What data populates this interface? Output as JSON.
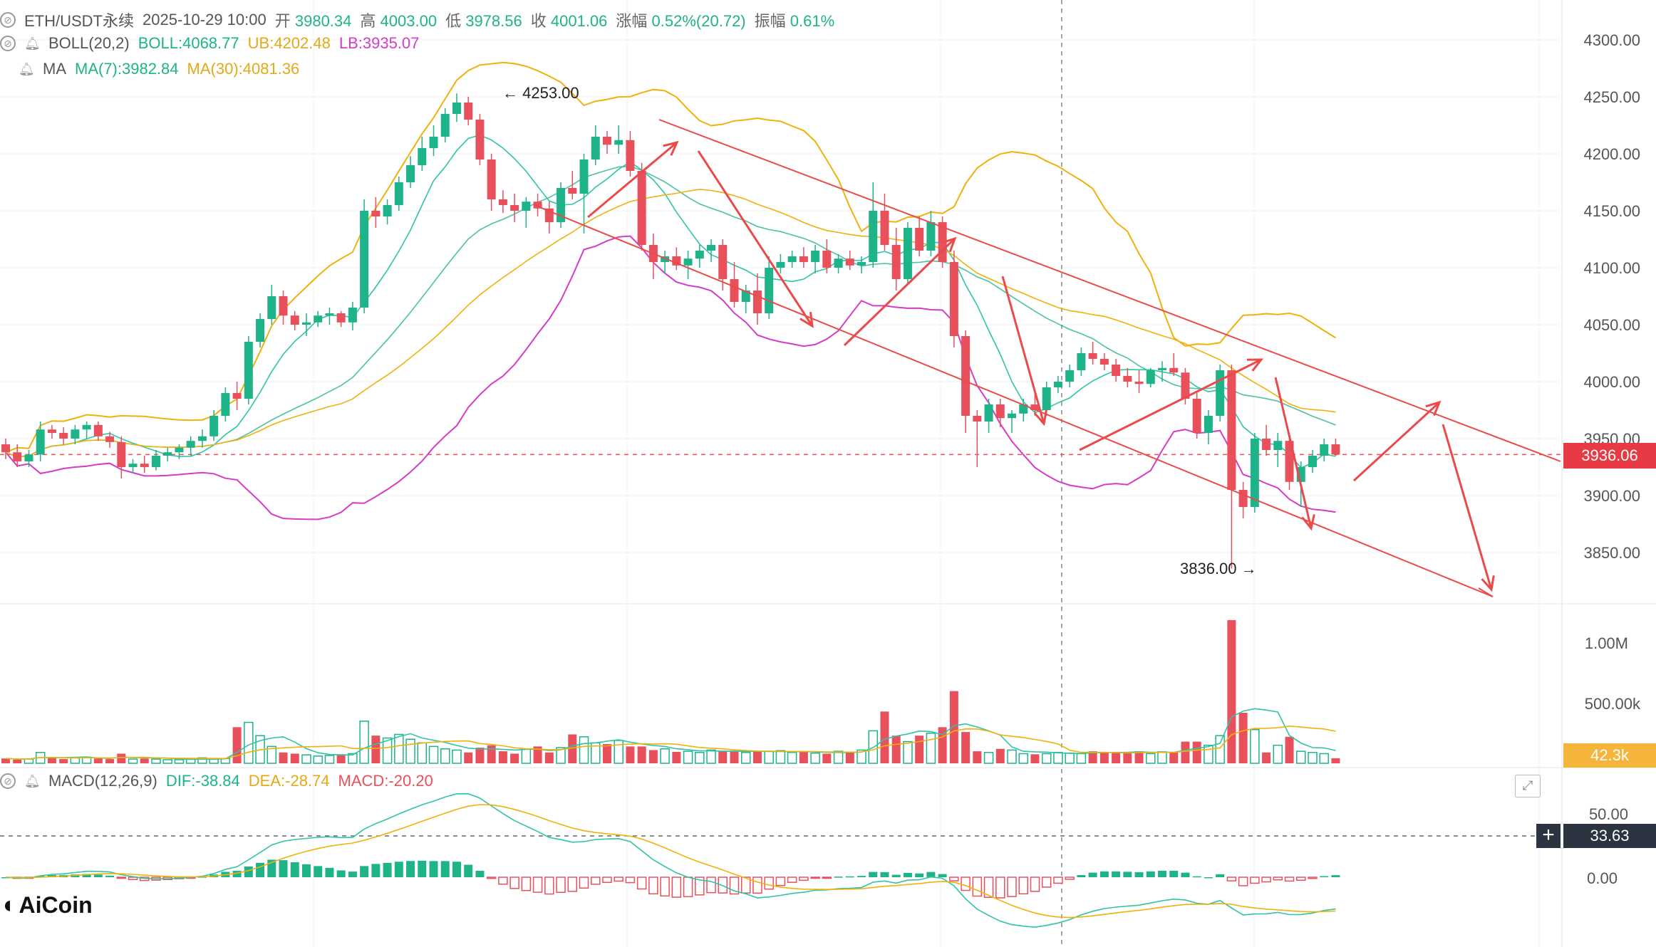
{
  "header": {
    "symbol": "ETH/USDT永续",
    "time": "2025-10-29 10:00",
    "open_label": "开",
    "open": "3980.34",
    "high_label": "高",
    "high": "4003.00",
    "low_label": "低",
    "low": "3978.56",
    "close_label": "收",
    "close": "4001.06",
    "change_label": "涨幅",
    "change": "0.52%(20.72)",
    "amplitude_label": "振幅",
    "amplitude": "0.61%"
  },
  "boll": {
    "name": "BOLL(20,2)",
    "mid": "BOLL:4068.77",
    "ub": "UB:4202.48",
    "lb": "LB:3935.07"
  },
  "ma": {
    "name": "MA",
    "ma7": "MA(7):3982.84",
    "ma30": "MA(30):4081.36"
  },
  "macd": {
    "name": "MACD(12,26,9)",
    "dif": "DIF:-38.84",
    "dea": "DEA:-28.74",
    "macd": "MACD:-20.20"
  },
  "price_axis": [
    "4300.00",
    "4250.00",
    "4200.00",
    "4150.00",
    "4100.00",
    "4050.00",
    "4000.00",
    "3950.00",
    "3900.00",
    "3850.00"
  ],
  "volume_axis": [
    "1.00M",
    "500.00k"
  ],
  "macd_axis": [
    "50.00",
    "0.00"
  ],
  "current_price_tag": "3936.06",
  "volume_tag": "42.3k",
  "macd_tag": "33.63",
  "high_marker": "4253.00",
  "low_marker": "3836.00",
  "logo_text": "AiCoin",
  "colors": {
    "up": "#1fb38a",
    "down": "#e8505b",
    "boll_mid": "#1fb38a",
    "boll_band": "#f0b10c",
    "lb": "#d43cc8",
    "ma7": "#2ec4a8",
    "ma30": "#f0b10c",
    "arrow": "#ea4a4a"
  },
  "chart_data": {
    "type": "candlestick",
    "ylim": [
      3800,
      4320
    ],
    "candles": [
      [
        3945,
        3950,
        3932,
        3938
      ],
      [
        3938,
        3945,
        3925,
        3930
      ],
      [
        3930,
        3940,
        3925,
        3936
      ],
      [
        3936,
        3965,
        3930,
        3958
      ],
      [
        3958,
        3962,
        3950,
        3955
      ],
      [
        3955,
        3960,
        3945,
        3950
      ],
      [
        3950,
        3962,
        3945,
        3958
      ],
      [
        3958,
        3965,
        3950,
        3962
      ],
      [
        3962,
        3965,
        3948,
        3952
      ],
      [
        3952,
        3956,
        3942,
        3947
      ],
      [
        3947,
        3952,
        3915,
        3925
      ],
      [
        3925,
        3932,
        3920,
        3928
      ],
      [
        3928,
        3935,
        3920,
        3925
      ],
      [
        3925,
        3940,
        3922,
        3935
      ],
      [
        3935,
        3942,
        3930,
        3938
      ],
      [
        3938,
        3945,
        3932,
        3942
      ],
      [
        3942,
        3952,
        3935,
        3948
      ],
      [
        3948,
        3958,
        3942,
        3952
      ],
      [
        3952,
        3975,
        3948,
        3970
      ],
      [
        3970,
        3995,
        3965,
        3990
      ],
      [
        3990,
        4000,
        3975,
        3985
      ],
      [
        3985,
        4040,
        3980,
        4035
      ],
      [
        4035,
        4060,
        4030,
        4055
      ],
      [
        4055,
        4085,
        4050,
        4075
      ],
      [
        4075,
        4080,
        4050,
        4058
      ],
      [
        4058,
        4062,
        4045,
        4050
      ],
      [
        4050,
        4060,
        4040,
        4052
      ],
      [
        4052,
        4062,
        4048,
        4058
      ],
      [
        4058,
        4065,
        4050,
        4060
      ],
      [
        4060,
        4062,
        4048,
        4052
      ],
      [
        4052,
        4070,
        4045,
        4065
      ],
      [
        4065,
        4160,
        4060,
        4150
      ],
      [
        4150,
        4162,
        4135,
        4145
      ],
      [
        4145,
        4160,
        4138,
        4155
      ],
      [
        4155,
        4180,
        4150,
        4175
      ],
      [
        4175,
        4198,
        4170,
        4190
      ],
      [
        4190,
        4215,
        4185,
        4205
      ],
      [
        4205,
        4225,
        4198,
        4215
      ],
      [
        4215,
        4240,
        4210,
        4235
      ],
      [
        4235,
        4253,
        4228,
        4245
      ],
      [
        4245,
        4250,
        4225,
        4230
      ],
      [
        4230,
        4235,
        4190,
        4195
      ],
      [
        4195,
        4200,
        4150,
        4160
      ],
      [
        4160,
        4168,
        4148,
        4155
      ],
      [
        4155,
        4165,
        4140,
        4150
      ],
      [
        4150,
        4162,
        4135,
        4158
      ],
      [
        4158,
        4165,
        4145,
        4152
      ],
      [
        4152,
        4158,
        4130,
        4140
      ],
      [
        4140,
        4175,
        4135,
        4170
      ],
      [
        4170,
        4185,
        4160,
        4165
      ],
      [
        4165,
        4200,
        4130,
        4195
      ],
      [
        4195,
        4225,
        4190,
        4215
      ],
      [
        4215,
        4220,
        4200,
        4208
      ],
      [
        4208,
        4225,
        4200,
        4212
      ],
      [
        4212,
        4220,
        4180,
        4185
      ],
      [
        4185,
        4192,
        4115,
        4120
      ],
      [
        4120,
        4130,
        4090,
        4105
      ],
      [
        4105,
        4115,
        4095,
        4110
      ],
      [
        4110,
        4118,
        4098,
        4102
      ],
      [
        4102,
        4115,
        4090,
        4108
      ],
      [
        4108,
        4120,
        4100,
        4115
      ],
      [
        4115,
        4125,
        4105,
        4120
      ],
      [
        4120,
        4125,
        4080,
        4090
      ],
      [
        4090,
        4105,
        4065,
        4070
      ],
      [
        4070,
        4085,
        4060,
        4080
      ],
      [
        4080,
        4095,
        4050,
        4060
      ],
      [
        4060,
        4110,
        4055,
        4100
      ],
      [
        4100,
        4112,
        4095,
        4105
      ],
      [
        4105,
        4115,
        4100,
        4110
      ],
      [
        4110,
        4118,
        4100,
        4105
      ],
      [
        4105,
        4120,
        4095,
        4115
      ],
      [
        4115,
        4125,
        4095,
        4100
      ],
      [
        4100,
        4112,
        4095,
        4108
      ],
      [
        4108,
        4115,
        4098,
        4102
      ],
      [
        4102,
        4110,
        4095,
        4105
      ],
      [
        4105,
        4175,
        4100,
        4150
      ],
      [
        4150,
        4165,
        4115,
        4120
      ],
      [
        4120,
        4135,
        4080,
        4090
      ],
      [
        4090,
        4140,
        4085,
        4135
      ],
      [
        4135,
        4145,
        4110,
        4115
      ],
      [
        4115,
        4150,
        4110,
        4140
      ],
      [
        4140,
        4145,
        4100,
        4105
      ],
      [
        4105,
        4115,
        4030,
        4040
      ],
      [
        4040,
        4045,
        3955,
        3970
      ],
      [
        3970,
        3975,
        3925,
        3965
      ],
      [
        3965,
        3985,
        3955,
        3980
      ],
      [
        3980,
        3985,
        3960,
        3968
      ],
      [
        3968,
        3975,
        3955,
        3972
      ],
      [
        3972,
        3985,
        3965,
        3980
      ],
      [
        3980,
        3990,
        3970,
        3975
      ],
      [
        3975,
        4000,
        3970,
        3995
      ],
      [
        3995,
        4005,
        3990,
        4000
      ],
      [
        4000,
        4015,
        3995,
        4010
      ],
      [
        4010,
        4030,
        4005,
        4025
      ],
      [
        4025,
        4035,
        4015,
        4020
      ],
      [
        4020,
        4025,
        4010,
        4015
      ],
      [
        4015,
        4020,
        4000,
        4005
      ],
      [
        4005,
        4012,
        3995,
        4000
      ],
      [
        4000,
        4010,
        3990,
        3998
      ],
      [
        3998,
        4012,
        3995,
        4010
      ],
      [
        4010,
        4018,
        4000,
        4012
      ],
      [
        4012,
        4025,
        4005,
        4008
      ],
      [
        4008,
        4012,
        3980,
        3985
      ],
      [
        3985,
        3990,
        3950,
        3955
      ],
      [
        3955,
        3975,
        3945,
        3970
      ],
      [
        3970,
        4015,
        3965,
        4010
      ],
      [
        4010,
        4015,
        3836,
        3905
      ],
      [
        3905,
        3912,
        3880,
        3890
      ],
      [
        3890,
        3955,
        3885,
        3950
      ],
      [
        3950,
        3962,
        3935,
        3940
      ],
      [
        3940,
        3955,
        3925,
        3948
      ],
      [
        3948,
        3950,
        3905,
        3912
      ],
      [
        3912,
        3930,
        3890,
        3925
      ],
      [
        3925,
        3940,
        3920,
        3935
      ],
      [
        3935,
        3950,
        3930,
        3945
      ],
      [
        3945,
        3950,
        3935,
        3936
      ]
    ],
    "volume_k": [
      40,
      30,
      35,
      90,
      45,
      35,
      45,
      50,
      40,
      35,
      80,
      35,
      40,
      35,
      30,
      30,
      35,
      45,
      35,
      40,
      300,
      340,
      230,
      140,
      90,
      80,
      70,
      60,
      65,
      75,
      80,
      350,
      230,
      210,
      240,
      200,
      170,
      140,
      120,
      110,
      90,
      130,
      150,
      100,
      80,
      120,
      140,
      90,
      130,
      240,
      220,
      170,
      160,
      190,
      140,
      140,
      110,
      120,
      95,
      100,
      90,
      110,
      105,
      100,
      90,
      95,
      100,
      105,
      90,
      95,
      85,
      80,
      100,
      90,
      110,
      270,
      430,
      230,
      180,
      230,
      250,
      300,
      600,
      260,
      100,
      90,
      120,
      110,
      80,
      75,
      80,
      90,
      85,
      80,
      100,
      90,
      95,
      90,
      100,
      80,
      95,
      90,
      180,
      180,
      150,
      230,
      1190,
      420,
      280,
      90,
      150,
      220,
      100,
      90,
      80,
      42
    ]
  },
  "annotations": [
    "downtrend channel",
    "trend arrows"
  ]
}
